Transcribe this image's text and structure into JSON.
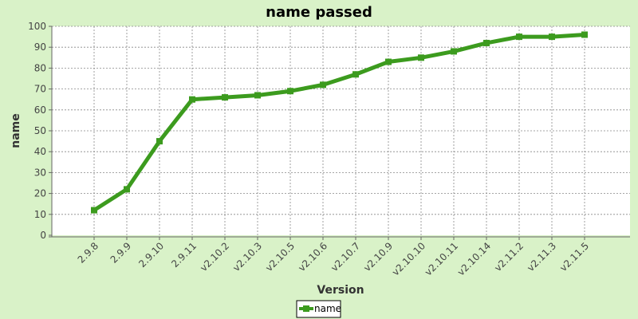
{
  "chart_data": {
    "type": "line",
    "title": "name passed",
    "xlabel": "Version",
    "ylabel": "name",
    "categories": [
      "2.9.8",
      "2.9.9",
      "2.9.10",
      "2.9.11",
      "v2.10.2",
      "v2.10.3",
      "v2.10.5",
      "v2.10.6",
      "v2.10.7",
      "v2.10.9",
      "v2.10.10",
      "v2.10.11",
      "v2.10.14",
      "v2.11.2",
      "v2.11.3",
      "v2.11.5"
    ],
    "series": [
      {
        "name": "name",
        "values": [
          12,
          22,
          45,
          65,
          66,
          67,
          69,
          72,
          77,
          83,
          85,
          88,
          92,
          95,
          95,
          96
        ]
      }
    ],
    "ylim": [
      0,
      100
    ],
    "yticks": [
      0,
      10,
      20,
      30,
      40,
      50,
      60,
      70,
      80,
      90,
      100
    ],
    "grid": true,
    "legend": "bottom-center",
    "colors": {
      "series": "#3c9b1e",
      "background": "#d9f2c8",
      "plot": "#ffffff"
    }
  }
}
